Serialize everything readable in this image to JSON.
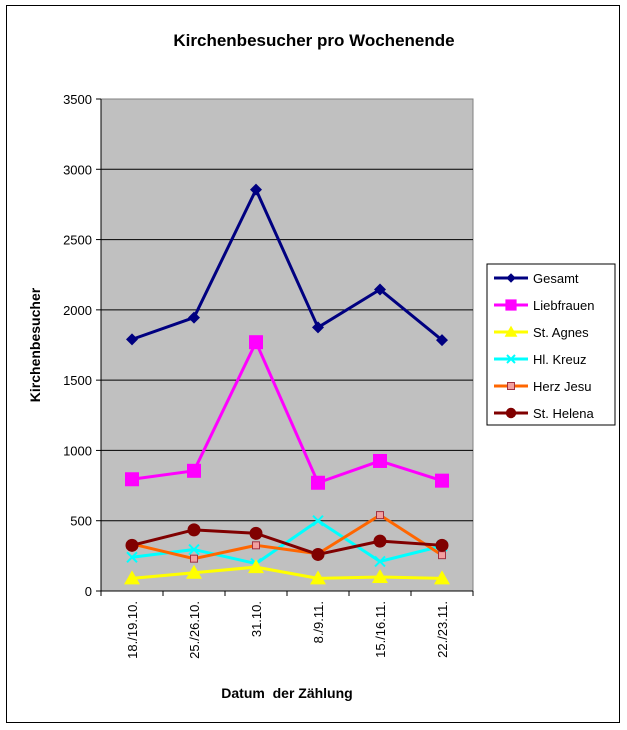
{
  "chart_data": {
    "type": "line",
    "title": "Kirchenbesucher pro Wochenende",
    "xlabel": "Datum  der Zählung",
    "ylabel": "Kirchenbesucher",
    "ylim": [
      0,
      3500
    ],
    "yticks": [
      0,
      500,
      1000,
      1500,
      2000,
      2500,
      3000,
      3500
    ],
    "grid": true,
    "legend": "right",
    "categories": [
      "18./19.10.",
      "25./26.10.",
      "31.10.",
      "8./9.11.",
      "15./16.11.",
      "22./23.11."
    ],
    "series": [
      {
        "name": "Gesamt",
        "color": "#000080",
        "marker": "diamond",
        "values": [
          1790,
          1945,
          2855,
          1875,
          2145,
          1785
        ]
      },
      {
        "name": "Liebfrauen",
        "color": "#ff00ff",
        "marker": "square",
        "values": [
          795,
          855,
          1770,
          770,
          925,
          785
        ]
      },
      {
        "name": "St. Agnes",
        "color": "#ffff00",
        "marker": "triangle",
        "values": [
          90,
          130,
          170,
          90,
          100,
          90
        ]
      },
      {
        "name": "Hl. Kreuz",
        "color": "#00ffff",
        "marker": "x",
        "values": [
          240,
          295,
          195,
          500,
          210,
          320
        ]
      },
      {
        "name": "Herz Jesu",
        "color": "#ff6600",
        "marker": "small-square",
        "values": [
          335,
          230,
          325,
          265,
          540,
          255
        ]
      },
      {
        "name": "St. Helena",
        "color": "#800000",
        "marker": "circle",
        "values": [
          325,
          435,
          410,
          260,
          355,
          325
        ]
      }
    ]
  }
}
